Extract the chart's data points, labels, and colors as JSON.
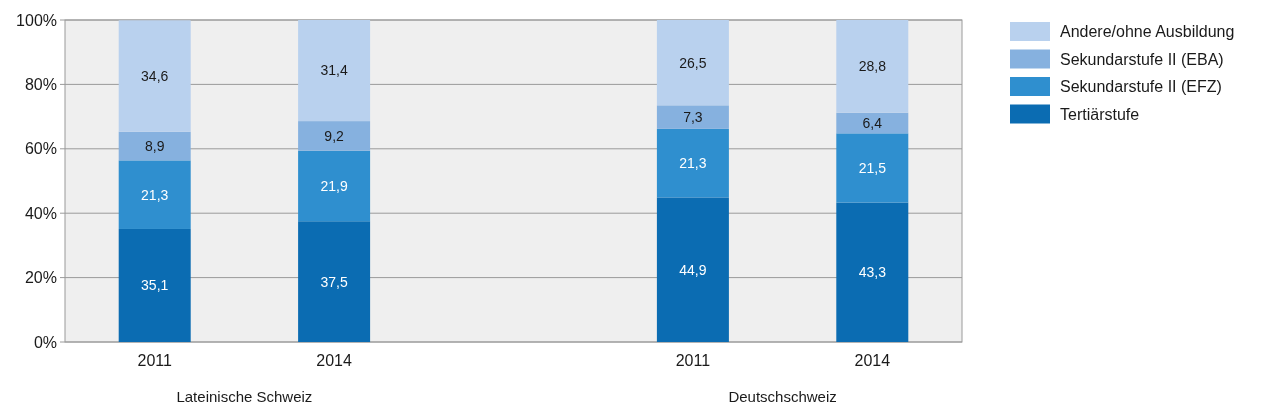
{
  "chart_data": {
    "type": "bar",
    "stacked": true,
    "categories": [
      "2011",
      "2014",
      null,
      "2011",
      "2014"
    ],
    "series": [
      {
        "name": "Tertiärstufe",
        "color": "#0b6cb2",
        "values": [
          35.1,
          37.5,
          null,
          44.9,
          43.3
        ],
        "value_labels": [
          "35,1",
          "37,5",
          null,
          "44,9",
          "43,3"
        ]
      },
      {
        "name": "Sekundarstufe II (EFZ)",
        "color": "#2f8fcf",
        "values": [
          21.3,
          21.9,
          null,
          21.3,
          21.5
        ],
        "value_labels": [
          "21,3",
          "21,9",
          null,
          "21,3",
          "21,5"
        ]
      },
      {
        "name": "Sekundarstufe II (EBA)",
        "color": "#86b1df",
        "values": [
          8.9,
          9.2,
          null,
          7.3,
          6.4
        ],
        "value_labels": [
          "8,9",
          "9,2",
          null,
          "7,3",
          "6,4"
        ]
      },
      {
        "name": "Andere/ohne Ausbildung",
        "color": "#b9d1ee",
        "values": [
          34.6,
          31.4,
          null,
          26.5,
          28.8
        ],
        "value_labels": [
          "34,6",
          "31,4",
          null,
          "26,5",
          "28,8"
        ]
      }
    ],
    "ylim": [
      0,
      100
    ],
    "yticks": [
      {
        "value": 0,
        "label": "0%"
      },
      {
        "value": 20,
        "label": "20%"
      },
      {
        "value": 40,
        "label": "40%"
      },
      {
        "value": 60,
        "label": "60%"
      },
      {
        "value": 80,
        "label": "80%"
      },
      {
        "value": 100,
        "label": "100%"
      }
    ],
    "grid": "y",
    "legend": "top right",
    "annotations": [
      "Lateinische Schweiz",
      "Deutschschweiz"
    ]
  }
}
